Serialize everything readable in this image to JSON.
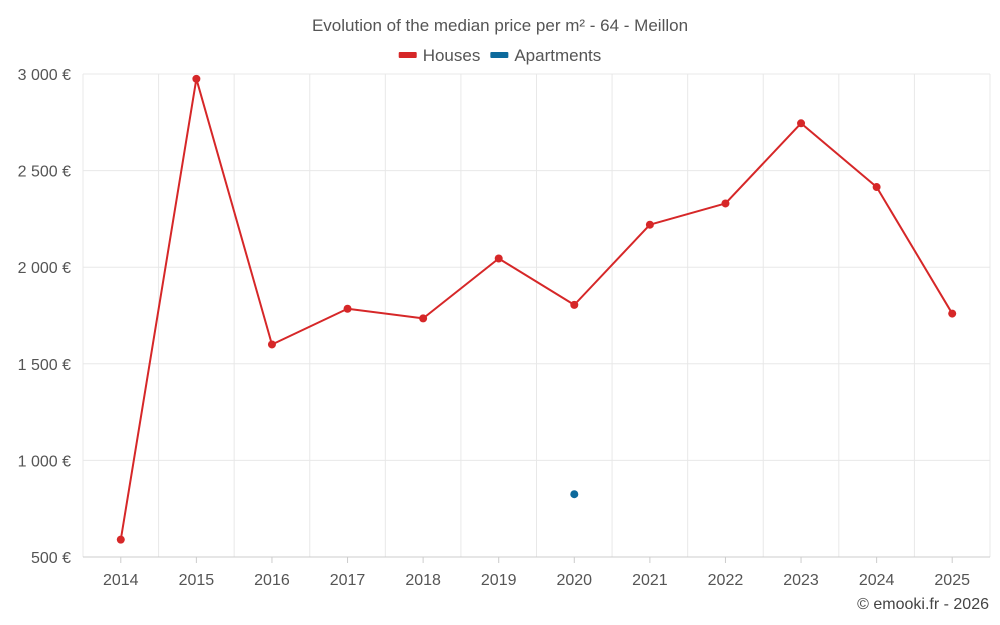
{
  "chart_data": {
    "type": "line",
    "title": "Evolution of the median price per m² - 64 - Meillon",
    "categories": [
      "2014",
      "2015",
      "2016",
      "2017",
      "2018",
      "2019",
      "2020",
      "2021",
      "2022",
      "2023",
      "2024",
      "2025"
    ],
    "series": [
      {
        "name": "Houses",
        "color": "#d62728",
        "values": [
          590,
          2975,
          1600,
          1785,
          1735,
          2045,
          1805,
          2220,
          2330,
          2745,
          2415,
          1760
        ]
      },
      {
        "name": "Apartments",
        "color": "#0d6a9c",
        "values": [
          null,
          null,
          null,
          null,
          null,
          null,
          825,
          null,
          null,
          null,
          null,
          null
        ]
      }
    ],
    "ylim": [
      500,
      3000
    ],
    "yticks": [
      500,
      1000,
      1500,
      2000,
      2500,
      3000
    ],
    "ytick_labels": [
      "500 €",
      "1 000 €",
      "1 500 €",
      "2 000 €",
      "2 500 €",
      "3 000 €"
    ],
    "xlabel": "",
    "ylabel": "",
    "legend_position": "top-center",
    "grid": true
  },
  "credit": "© emooki.fr - 2026"
}
